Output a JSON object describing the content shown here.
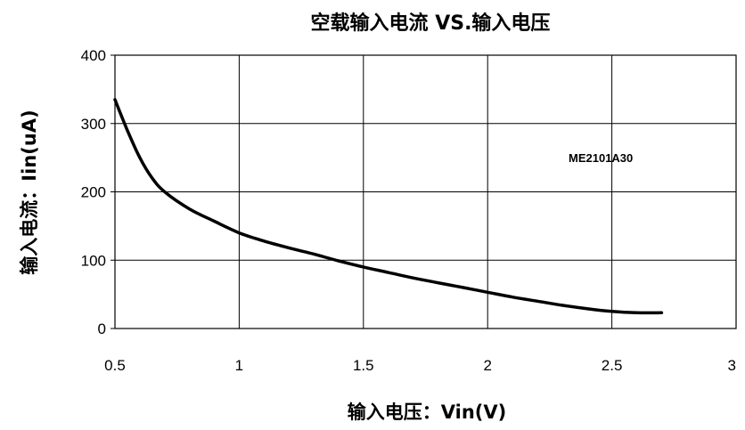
{
  "chart_data": {
    "type": "line",
    "title": "空载输入电流 VS.输入电压",
    "xlabel": "输入电压：Vin(V)",
    "ylabel": "输入电流：Iin(uA)",
    "xlim": [
      0.5,
      3
    ],
    "ylim": [
      0,
      400
    ],
    "x_ticks": [
      "0.5",
      "1",
      "1.5",
      "2",
      "2.5",
      "3"
    ],
    "y_ticks": [
      "0",
      "100",
      "200",
      "300",
      "400"
    ],
    "grid": true,
    "annotation": "ME2101A30",
    "series": [
      {
        "color": "#000000",
        "x": [
          0.5,
          0.55,
          0.6,
          0.65,
          0.7,
          0.8,
          0.9,
          1.0,
          1.1,
          1.2,
          1.3,
          1.4,
          1.5,
          1.6,
          1.7,
          1.8,
          1.9,
          2.0,
          2.1,
          2.2,
          2.3,
          2.4,
          2.5,
          2.6,
          2.7
        ],
        "y": [
          335,
          290,
          250,
          220,
          200,
          175,
          157,
          140,
          128,
          118,
          109,
          99,
          90,
          82,
          74,
          67,
          60,
          53,
          46,
          40,
          34,
          29,
          25,
          23,
          23
        ]
      }
    ]
  }
}
